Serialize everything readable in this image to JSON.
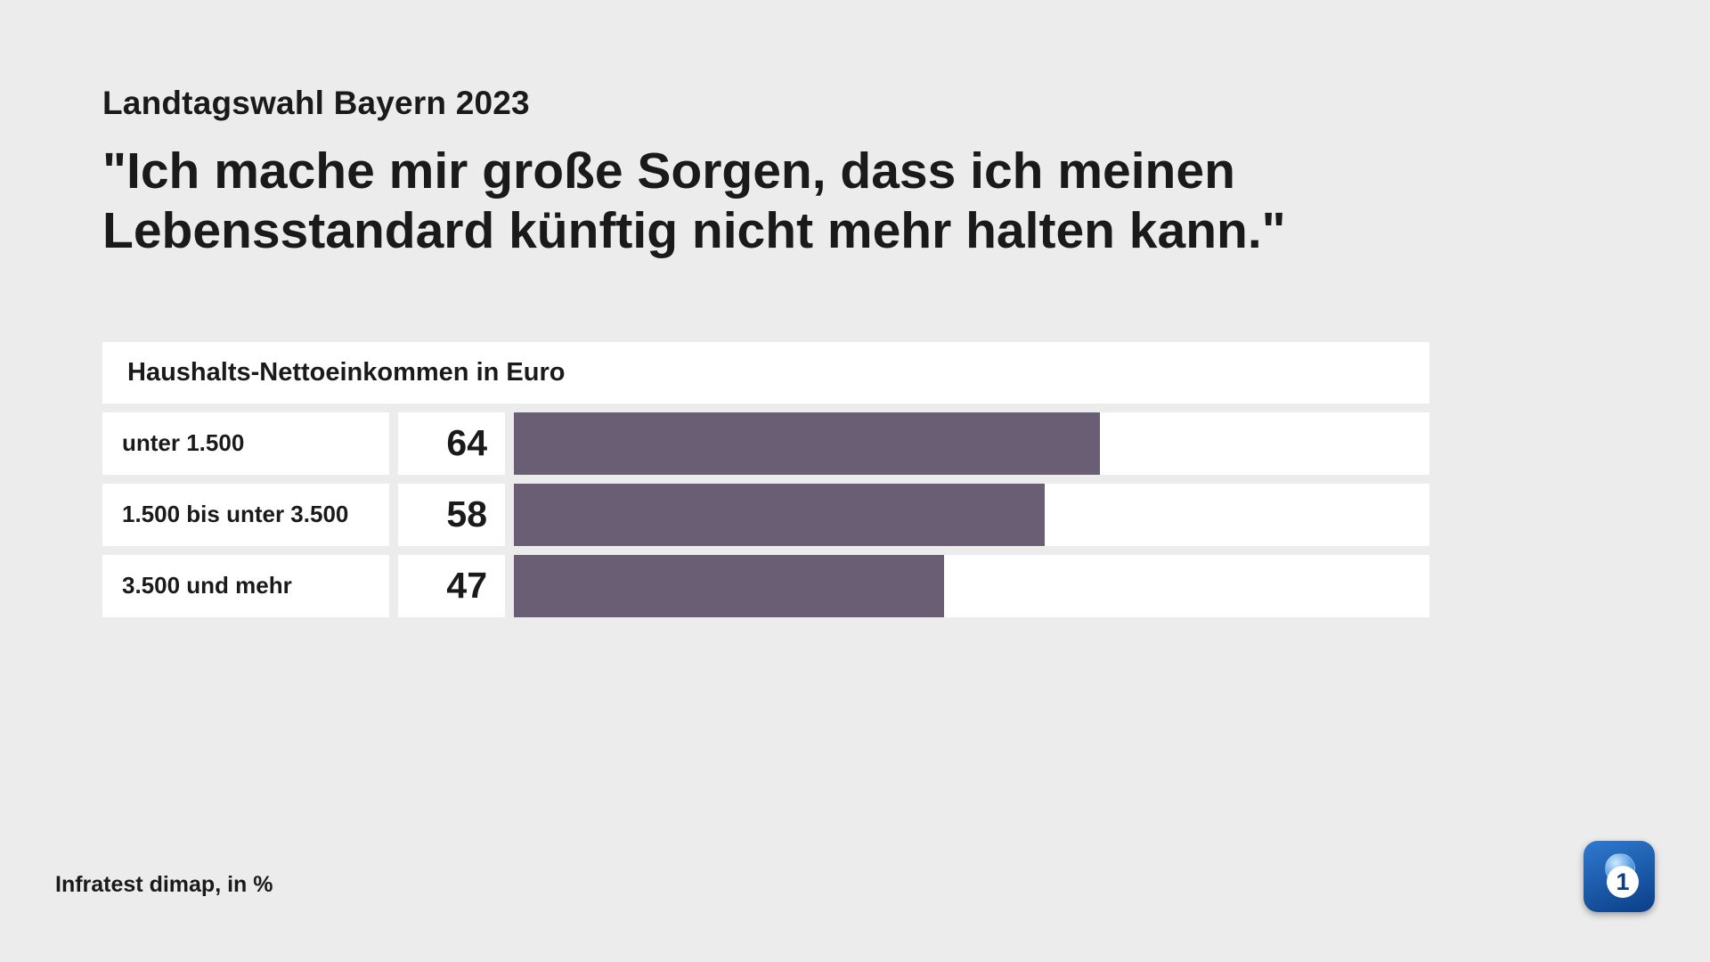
{
  "header": {
    "overline": "Landtagswahl Bayern 2023",
    "title_line1": "\"Ich mache mir große Sorgen, dass ich meinen",
    "title_line2": "Lebensstandard künftig nicht mehr halten kann.\""
  },
  "chart": {
    "type": "bar-horizontal",
    "heading": "Haushalts-Nettoeinkommen in Euro",
    "xlim_max": 100,
    "bar_color": "#6a5e74",
    "cell_bg": "#ffffff",
    "rows": [
      {
        "label": "unter 1.500",
        "value": 64
      },
      {
        "label": "1.500 bis unter 3.500",
        "value": 58
      },
      {
        "label": "3.500 und mehr",
        "value": 47
      }
    ]
  },
  "footnote": "Infratest dimap, in %",
  "logo": {
    "name": "das-erste-logo",
    "digit": "1"
  },
  "page_bg": "#edecec"
}
